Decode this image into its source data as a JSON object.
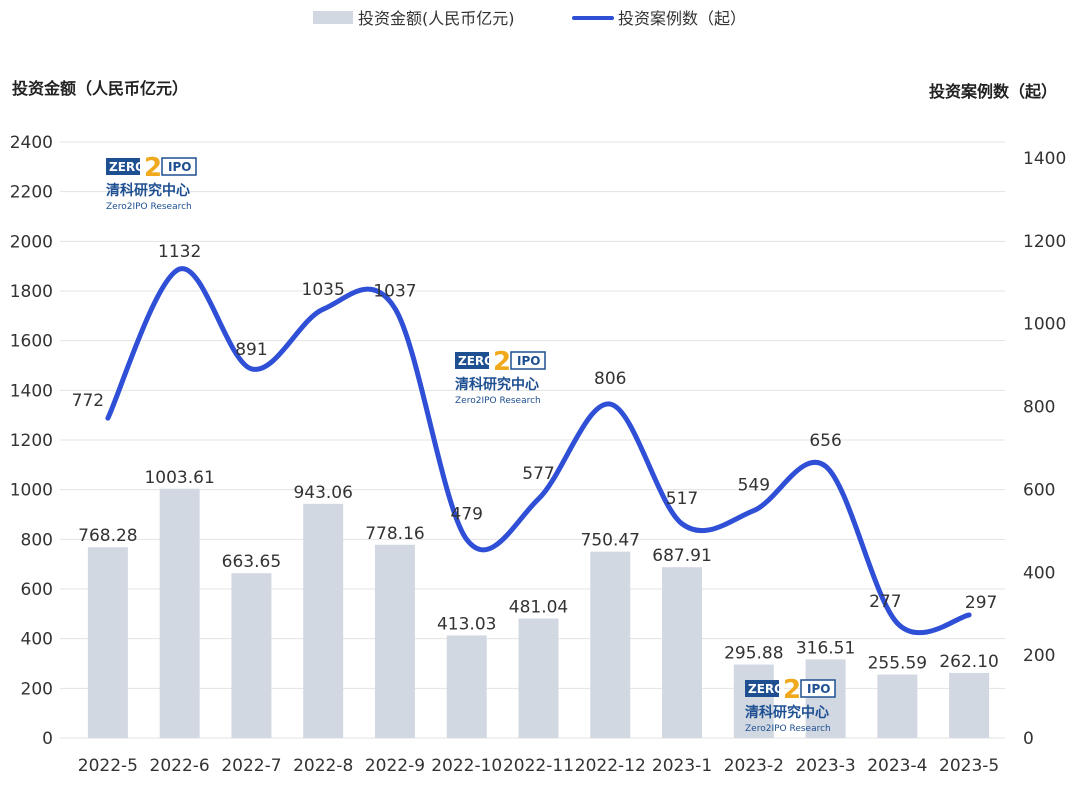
{
  "legend": {
    "bar_label": "投资金额(人民币亿元)",
    "line_label": "投资案例数（起）"
  },
  "colors": {
    "bar": "#d2d8e2",
    "line": "#2e4fd6",
    "grid": "#e3e3e3",
    "brand": "#1d4f91"
  },
  "watermark": {
    "logo_text": "ZERO2IPO",
    "cn_name": "清科研究中心",
    "en_name": "Zero2IPO Research"
  },
  "chart_data": {
    "type": "bar",
    "categories": [
      "2022-5",
      "2022-6",
      "2022-7",
      "2022-8",
      "2022-9",
      "2022-10",
      "2022-11",
      "2022-12",
      "2023-1",
      "2023-2",
      "2023-3",
      "2023-4",
      "2023-5"
    ],
    "series": [
      {
        "name": "投资金额(人民币亿元)",
        "type": "bar",
        "axis": "left",
        "values": [
          768.28,
          1003.61,
          663.65,
          943.06,
          778.16,
          413.03,
          481.04,
          750.47,
          687.91,
          295.88,
          316.51,
          255.59,
          262.1
        ],
        "labels": [
          "768.28",
          "1003.61",
          "663.65",
          "943.06",
          "778.16",
          "413.03",
          "481.04",
          "750.47",
          "687.91",
          "295.88",
          "316.51",
          "255.59",
          "262.10"
        ]
      },
      {
        "name": "投资案例数（起）",
        "type": "line",
        "axis": "right",
        "values": [
          772,
          1132,
          891,
          1035,
          1037,
          479,
          577,
          806,
          517,
          549,
          656,
          277,
          297
        ],
        "labels": [
          "772",
          "1132",
          "891",
          "1035",
          "1037",
          "479",
          "577",
          "806",
          "517",
          "549",
          "656",
          "277",
          "297"
        ]
      }
    ],
    "y_left": {
      "title": "投资金额（人民币亿元）",
      "range": [
        0,
        2400
      ],
      "ticks": [
        "0",
        "200",
        "400",
        "600",
        "800",
        "1000",
        "1200",
        "1400",
        "1600",
        "1800",
        "2000",
        "2200",
        "2400"
      ]
    },
    "y_right": {
      "title": "投资案例数（起）",
      "range": [
        0,
        1400
      ],
      "ticks": [
        "0",
        "200",
        "400",
        "600",
        "800",
        "1000",
        "1200",
        "1400"
      ]
    },
    "grid": true,
    "legend_position": "top-center"
  }
}
